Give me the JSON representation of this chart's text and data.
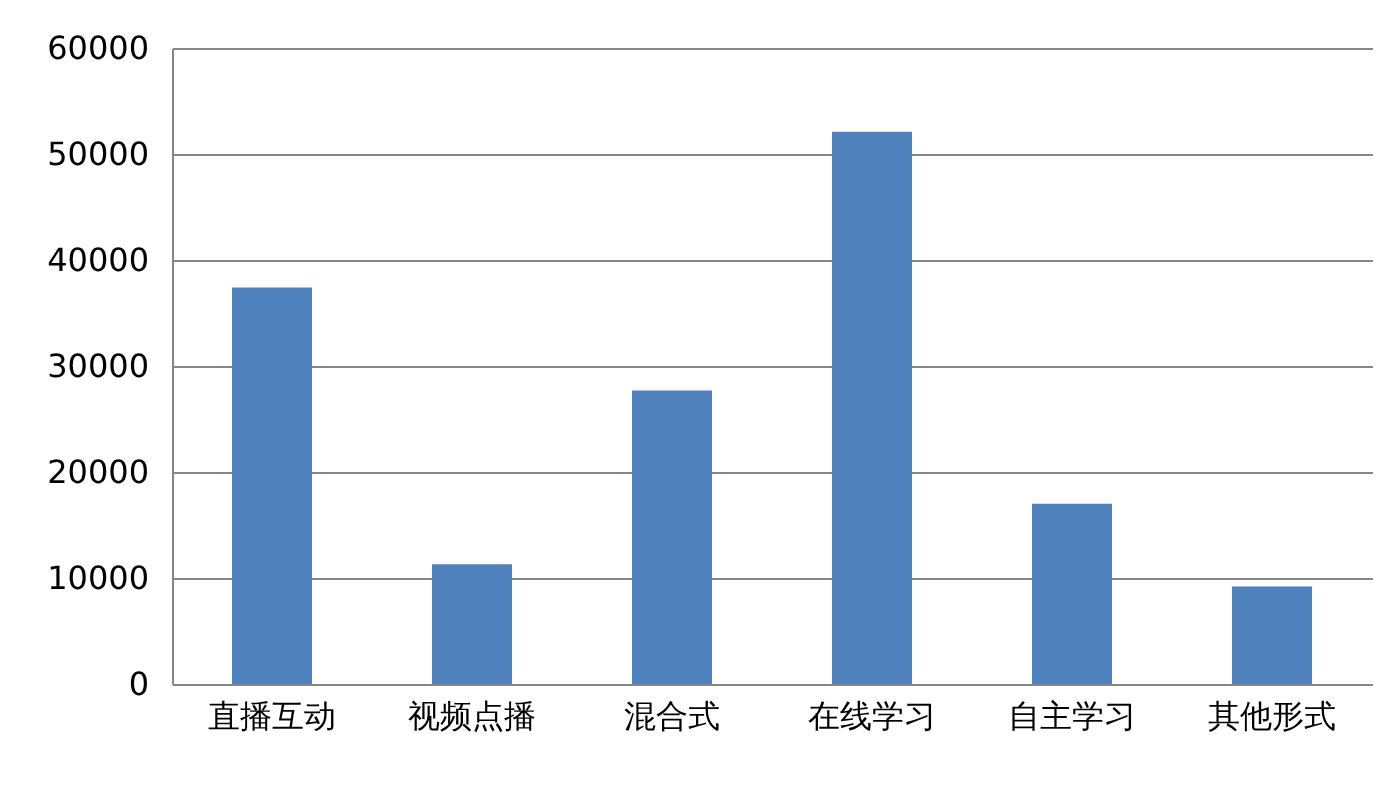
{
  "chart_data": {
    "type": "bar",
    "categories": [
      "直播互动",
      "视频点播",
      "混合式",
      "在线学习",
      "自主学习",
      "其他形式"
    ],
    "values": [
      37400,
      11300,
      27700,
      52100,
      17000,
      9200
    ],
    "color": "#4f81bd",
    "ylim": [
      0,
      60000
    ],
    "yticks": [
      0,
      10000,
      20000,
      30000,
      40000,
      50000,
      60000
    ],
    "grid": "y"
  }
}
